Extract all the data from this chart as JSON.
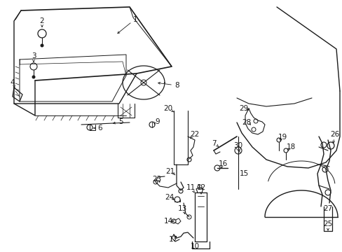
{
  "background_color": "#ffffff",
  "line_color": "#1a1a1a",
  "text_color": "#1a1a1a",
  "font_size": 7.5,
  "fig_width": 4.89,
  "fig_height": 3.6,
  "dpi": 100
}
